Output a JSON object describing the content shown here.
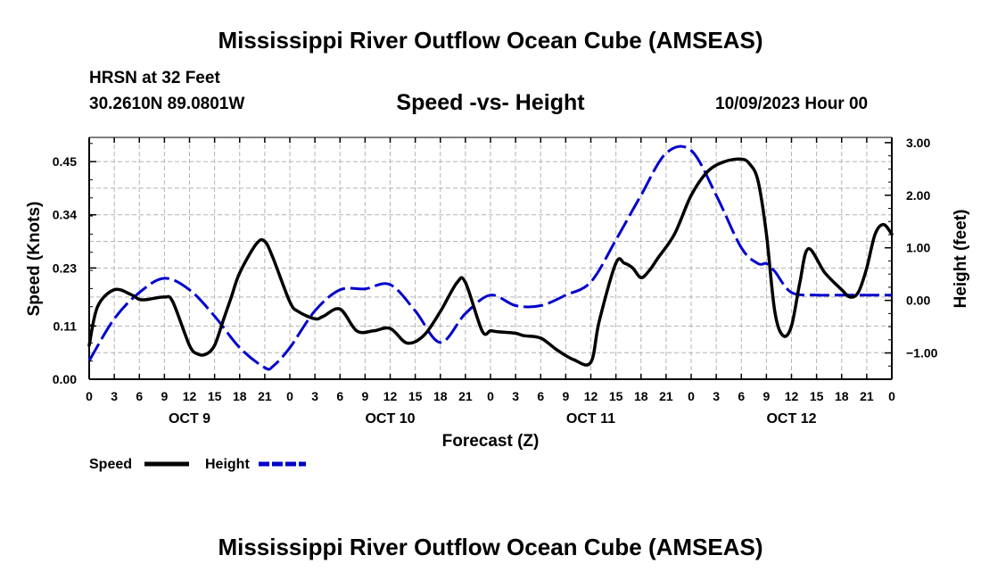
{
  "header": {
    "title": "Mississippi River Outflow Ocean Cube (AMSEAS)",
    "station": "HRSN at 32 Feet",
    "coords": "30.2610N  89.0801W",
    "subtitle": "Speed -vs- Height",
    "datetime": "10/09/2023 Hour 00"
  },
  "footer": {
    "title": "Mississippi River Outflow Ocean Cube (AMSEAS)"
  },
  "chart_data": {
    "type": "line",
    "title": "Speed -vs- Height",
    "xlabel": "Forecast (Z)",
    "ylabel": "Speed (Knots)",
    "y2label": "Height (feet)",
    "x_range": [
      0,
      96
    ],
    "ylim": [
      0,
      0.5
    ],
    "y2lim": [
      -1.5,
      3.1
    ],
    "x_tick_hours": [
      0,
      3,
      6,
      9,
      12,
      15,
      18,
      21,
      24,
      27,
      30,
      33,
      36,
      39,
      42,
      45,
      48,
      51,
      54,
      57,
      60,
      63,
      66,
      69,
      72,
      75,
      78,
      81,
      84,
      87,
      90,
      93,
      96
    ],
    "x_tick_labels": [
      "0",
      "3",
      "6",
      "9",
      "12",
      "15",
      "18",
      "21",
      "0",
      "3",
      "6",
      "9",
      "12",
      "15",
      "18",
      "21",
      "0",
      "3",
      "6",
      "9",
      "12",
      "15",
      "18",
      "21",
      "0",
      "3",
      "6",
      "9",
      "12",
      "15",
      "18",
      "21",
      "0"
    ],
    "day_labels": [
      {
        "hour": 12,
        "label": "OCT 9"
      },
      {
        "hour": 36,
        "label": "OCT 10"
      },
      {
        "hour": 60,
        "label": "OCT 11"
      },
      {
        "hour": 84,
        "label": "OCT 12"
      }
    ],
    "y_ticks": [
      0.0,
      0.11,
      0.23,
      0.34,
      0.45
    ],
    "y_tick_labels": [
      "0.00",
      "0.11",
      "0.23",
      "0.34",
      "0.45"
    ],
    "y2_ticks": [
      -1.0,
      0.0,
      1.0,
      2.0,
      3.0
    ],
    "y2_tick_labels": [
      "−1.00",
      "0.00",
      "1.00",
      "2.00",
      "3.00"
    ],
    "grid": true,
    "legend": [
      {
        "name": "Speed",
        "color": "#000000",
        "style": "solid"
      },
      {
        "name": "Height",
        "color": "#0000cc",
        "style": "dashed"
      }
    ],
    "series": [
      {
        "name": "Speed",
        "axis": "left",
        "color": "#000000",
        "x": [
          0,
          1,
          3,
          5,
          6,
          7,
          9,
          10,
          12,
          13,
          14,
          15,
          16,
          17,
          18,
          20,
          21,
          22,
          24,
          25,
          27,
          28,
          30,
          32,
          34,
          36,
          38,
          40,
          42,
          44,
          45,
          47,
          48,
          49,
          51,
          52,
          54,
          56,
          58,
          60,
          61,
          63,
          64,
          65,
          66,
          67,
          68,
          70,
          72,
          74,
          76,
          78,
          79,
          80,
          81,
          82,
          83,
          84,
          85,
          86,
          88,
          90,
          91,
          92,
          93,
          94,
          95,
          96
        ],
        "values": [
          0.07,
          0.15,
          0.185,
          0.175,
          0.165,
          0.165,
          0.17,
          0.16,
          0.07,
          0.052,
          0.052,
          0.07,
          0.12,
          0.17,
          0.22,
          0.28,
          0.285,
          0.25,
          0.16,
          0.14,
          0.125,
          0.13,
          0.145,
          0.1,
          0.1,
          0.105,
          0.075,
          0.09,
          0.14,
          0.2,
          0.2,
          0.1,
          0.1,
          0.098,
          0.095,
          0.09,
          0.085,
          0.06,
          0.04,
          0.035,
          0.12,
          0.24,
          0.24,
          0.23,
          0.21,
          0.225,
          0.25,
          0.3,
          0.38,
          0.43,
          0.45,
          0.455,
          0.445,
          0.41,
          0.3,
          0.14,
          0.09,
          0.11,
          0.2,
          0.27,
          0.22,
          0.185,
          0.17,
          0.18,
          0.23,
          0.3,
          0.32,
          0.3
        ]
      },
      {
        "name": "Height",
        "axis": "right",
        "color": "#0000cc",
        "x": [
          0,
          3,
          6,
          9,
          12,
          15,
          18,
          21,
          22,
          24,
          27,
          30,
          33,
          36,
          39,
          42,
          45,
          48,
          51,
          54,
          57,
          60,
          63,
          66,
          69,
          72,
          75,
          78,
          80,
          81,
          82,
          84,
          87,
          90,
          93,
          96
        ],
        "values": [
          -1.15,
          -0.35,
          0.15,
          0.42,
          0.2,
          -0.3,
          -0.9,
          -1.28,
          -1.25,
          -0.9,
          -0.2,
          0.2,
          0.22,
          0.3,
          -0.2,
          -0.8,
          -0.25,
          0.1,
          -0.1,
          -0.1,
          0.1,
          0.35,
          1.15,
          2.0,
          2.8,
          2.85,
          2.0,
          1.0,
          0.7,
          0.7,
          0.55,
          0.15,
          0.1,
          0.1,
          0.1,
          0.1
        ]
      }
    ]
  }
}
